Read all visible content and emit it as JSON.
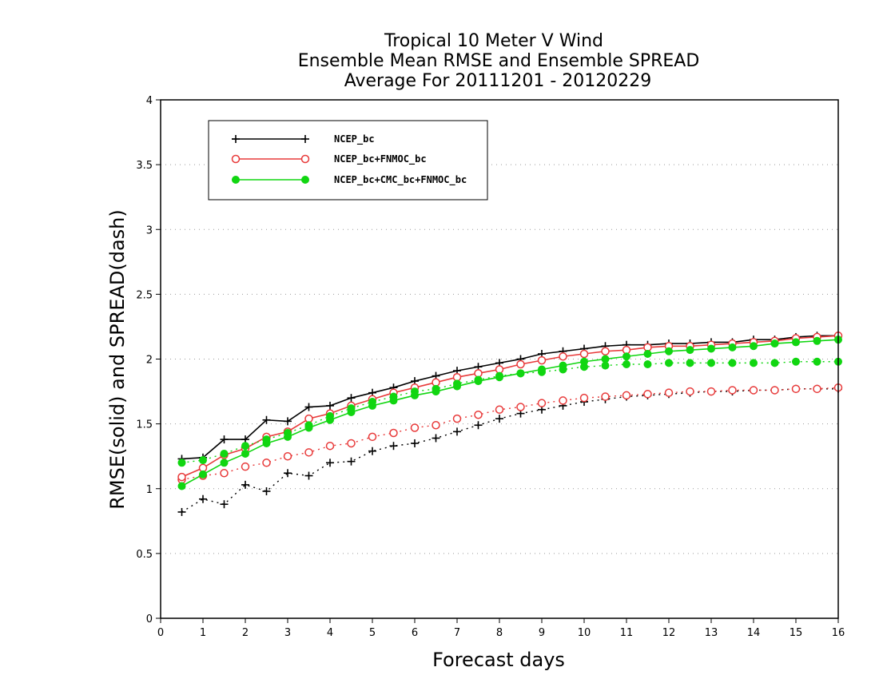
{
  "chart_data": {
    "type": "line",
    "title_lines": [
      "Tropical 10 Meter V Wind",
      "Ensemble Mean RMSE and Ensemble SPREAD",
      "Average For 20111201 - 20120229"
    ],
    "xlabel": "Forecast days",
    "ylabel": "RMSE(solid) and SPREAD(dash)",
    "xlim": [
      0,
      16
    ],
    "ylim": [
      0,
      4
    ],
    "xticks": [
      0,
      1,
      2,
      3,
      4,
      5,
      6,
      7,
      8,
      9,
      10,
      11,
      12,
      13,
      14,
      15,
      16
    ],
    "xtick_labels": [
      "0",
      "1",
      "2",
      "3",
      "4",
      "5",
      "6",
      "7",
      "8",
      "9",
      "10",
      "11",
      "12",
      "13",
      "14",
      "15",
      "16"
    ],
    "yticks": [
      0,
      0.5,
      1,
      1.5,
      2,
      2.5,
      3,
      3.5,
      4
    ],
    "ytick_labels": [
      "0",
      "0.5",
      "1",
      "1.5",
      "2",
      "2.5",
      "3",
      "3.5",
      "4"
    ],
    "grid": "horizontal dotted",
    "legend_position": "top-left",
    "x": [
      0.5,
      1,
      1.5,
      2,
      2.5,
      3,
      3.5,
      4,
      4.5,
      5,
      5.5,
      6,
      6.5,
      7,
      7.5,
      8,
      8.5,
      9,
      9.5,
      10,
      10.5,
      11,
      11.5,
      12,
      12.5,
      13,
      13.5,
      14,
      14.5,
      15,
      15.5,
      16
    ],
    "series": [
      {
        "name": "NCEP_bc",
        "color": "#000000",
        "marker": "plus",
        "rmse": [
          1.23,
          1.24,
          1.38,
          1.38,
          1.53,
          1.52,
          1.63,
          1.64,
          1.7,
          1.74,
          1.78,
          1.83,
          1.87,
          1.91,
          1.94,
          1.97,
          2.0,
          2.04,
          2.06,
          2.08,
          2.1,
          2.11,
          2.11,
          2.12,
          2.12,
          2.13,
          2.13,
          2.15,
          2.15,
          2.17,
          2.18,
          2.18
        ],
        "spread": [
          0.82,
          0.92,
          0.88,
          1.03,
          0.98,
          1.12,
          1.1,
          1.2,
          1.21,
          1.29,
          1.33,
          1.35,
          1.39,
          1.44,
          1.49,
          1.54,
          1.58,
          1.61,
          1.64,
          1.67,
          1.69,
          1.71,
          1.72,
          1.73,
          1.74,
          1.75,
          1.75,
          1.76,
          1.76,
          1.77,
          1.77,
          1.77
        ]
      },
      {
        "name": "NCEP_bc+FNMOC_bc",
        "color": "#e83a3a",
        "marker": "open-circle",
        "rmse": [
          1.09,
          1.16,
          1.26,
          1.31,
          1.4,
          1.44,
          1.54,
          1.58,
          1.64,
          1.69,
          1.74,
          1.78,
          1.82,
          1.86,
          1.89,
          1.92,
          1.96,
          1.99,
          2.02,
          2.04,
          2.06,
          2.07,
          2.09,
          2.1,
          2.1,
          2.11,
          2.12,
          2.13,
          2.14,
          2.16,
          2.17,
          2.18
        ],
        "spread": [
          1.07,
          1.1,
          1.12,
          1.17,
          1.2,
          1.25,
          1.28,
          1.33,
          1.35,
          1.4,
          1.43,
          1.47,
          1.49,
          1.54,
          1.57,
          1.61,
          1.63,
          1.66,
          1.68,
          1.7,
          1.71,
          1.72,
          1.73,
          1.74,
          1.75,
          1.75,
          1.76,
          1.76,
          1.76,
          1.77,
          1.77,
          1.78
        ]
      },
      {
        "name": "NCEP_bc+CMC_bc+FNMOC_bc",
        "color": "#11d611",
        "marker": "filled-circle",
        "rmse": [
          1.02,
          1.11,
          1.2,
          1.27,
          1.35,
          1.4,
          1.47,
          1.53,
          1.59,
          1.64,
          1.68,
          1.72,
          1.75,
          1.79,
          1.83,
          1.86,
          1.89,
          1.92,
          1.95,
          1.98,
          2.0,
          2.02,
          2.04,
          2.06,
          2.07,
          2.08,
          2.09,
          2.1,
          2.12,
          2.13,
          2.14,
          2.15
        ],
        "spread": [
          1.2,
          1.22,
          1.27,
          1.33,
          1.38,
          1.43,
          1.49,
          1.56,
          1.62,
          1.67,
          1.71,
          1.75,
          1.77,
          1.81,
          1.84,
          1.87,
          1.89,
          1.9,
          1.92,
          1.94,
          1.95,
          1.96,
          1.96,
          1.97,
          1.97,
          1.97,
          1.97,
          1.97,
          1.97,
          1.98,
          1.98,
          1.98
        ]
      }
    ]
  }
}
